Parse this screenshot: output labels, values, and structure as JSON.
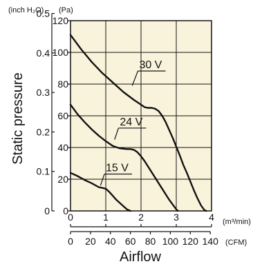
{
  "chart_data": {
    "type": "line",
    "title": "",
    "ylabel": "Static pressure",
    "xlabel": "Airflow",
    "y_units": {
      "inch": "(inch H₂O)",
      "pa": "(Pa)"
    },
    "x_units": {
      "m3": "(m³/min)",
      "cfm": "(CFM)"
    },
    "ylim": [
      0,
      120
    ],
    "xlim": [
      0,
      4
    ],
    "grid": true,
    "plot_background": "#faf3dc",
    "line_color": "#111111",
    "y_ticks_pa": [
      "0",
      "20",
      "40",
      "60",
      "80",
      "100",
      "120"
    ],
    "y_ticks_inch": [
      "0",
      "0.1",
      "0.2",
      "0.3",
      "0.4",
      "0.5"
    ],
    "x_ticks_m3": [
      "0",
      "1",
      "2",
      "3",
      "4"
    ],
    "x_ticks_cfm": [
      "0",
      "20",
      "40",
      "60",
      "80",
      "100",
      "120",
      "140"
    ],
    "series": [
      {
        "name": "30 V",
        "x": [
          0,
          0.3,
          0.6,
          0.9,
          1.2,
          1.5,
          1.8,
          2.0,
          2.1,
          2.2,
          2.3,
          2.4,
          2.5,
          2.6,
          2.7,
          2.8,
          2.9,
          3.0,
          3.1,
          3.2,
          3.3,
          3.4,
          3.5,
          3.6,
          3.7,
          3.8,
          3.85
        ],
        "values": [
          111,
          102,
          94,
          87,
          81,
          75,
          70,
          67,
          65.5,
          65,
          65,
          64.5,
          63,
          60,
          56,
          51,
          46,
          40.5,
          35,
          29,
          24,
          18.5,
          13,
          8,
          3.5,
          0.5,
          0
        ]
      },
      {
        "name": "24 V",
        "x": [
          0,
          0.2,
          0.4,
          0.6,
          0.8,
          1.0,
          1.2,
          1.4,
          1.6,
          1.7,
          1.8,
          1.9,
          2.0,
          2.1,
          2.2,
          2.3,
          2.4,
          2.5,
          2.6,
          2.7,
          2.8,
          2.9,
          3.0,
          3.05
        ],
        "values": [
          67,
          61,
          56,
          51.5,
          47.5,
          44,
          41,
          39.5,
          39,
          39,
          38.5,
          37,
          34.5,
          31.5,
          28,
          24.5,
          21,
          17.5,
          14,
          10.5,
          7,
          4,
          1,
          0
        ]
      },
      {
        "name": "15 V",
        "x": [
          0,
          0.2,
          0.4,
          0.6,
          0.8,
          0.9,
          1.0,
          1.1,
          1.2,
          1.3,
          1.4,
          1.5,
          1.6,
          1.7
        ],
        "values": [
          24,
          22,
          19.5,
          17.5,
          15,
          14.5,
          14,
          12,
          9.5,
          7,
          5,
          3,
          1,
          0
        ]
      }
    ],
    "label_anchors": [
      {
        "x": 1.75,
        "y": 79,
        "text_x": 1.95,
        "text_y": 90
      },
      {
        "x": 1.25,
        "y": 45,
        "text_x": 1.4,
        "text_y": 54
      },
      {
        "x": 0.85,
        "y": 16,
        "text_x": 1.0,
        "text_y": 25
      }
    ]
  }
}
